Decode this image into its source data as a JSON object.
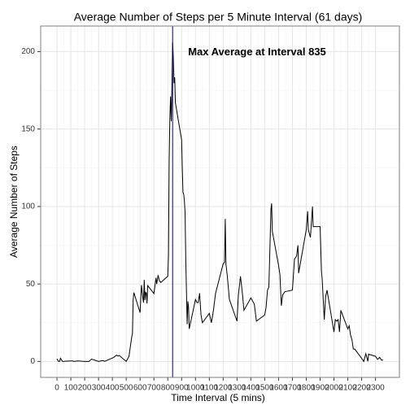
{
  "chart_data": {
    "type": "line",
    "title": "Average Number of Steps per 5 Minute Interval (61 days)",
    "xlabel": "Time Interval (5 mins)",
    "ylabel": "Average Number of Steps",
    "annotation": "Max Average at Interval  835",
    "vline": 835,
    "vline_color": "#00008b",
    "grid": true,
    "x": [
      0,
      10,
      20,
      25,
      40,
      100,
      115,
      120,
      140,
      150,
      200,
      230,
      250,
      300,
      330,
      345,
      410,
      430,
      440,
      450,
      500,
      520,
      540,
      545,
      550,
      555,
      600,
      610,
      620,
      625,
      630,
      635,
      640,
      645,
      650,
      655,
      700,
      710,
      715,
      720,
      730,
      740,
      750,
      800,
      805,
      810,
      815,
      820,
      825,
      830,
      835,
      840,
      845,
      850,
      855,
      900,
      905,
      910,
      915,
      920,
      925,
      930,
      935,
      940,
      945,
      950,
      955,
      1000,
      1010,
      1020,
      1030,
      1040,
      1050,
      1100,
      1115,
      1130,
      1145,
      1200,
      1210,
      1215,
      1220,
      1230,
      1245,
      1300,
      1310,
      1325,
      1340,
      1350,
      1400,
      1425,
      1440,
      1500,
      1510,
      1520,
      1530,
      1545,
      1550,
      1555,
      1600,
      1610,
      1620,
      1630,
      1645,
      1700,
      1715,
      1730,
      1740,
      1745,
      1800,
      1810,
      1815,
      1830,
      1845,
      1850,
      1900,
      1910,
      1915,
      1930,
      1940,
      1950,
      2000,
      2010,
      2020,
      2030,
      2040,
      2050,
      2100,
      2110,
      2120,
      2130,
      2140,
      2150,
      2200,
      2215,
      2230,
      2245,
      2250,
      2300,
      2315,
      2330,
      2345,
      2355
    ],
    "series": [
      {
        "name": "steps",
        "color": "#000000",
        "values": [
          1.7,
          0.1,
          0.1,
          2.1,
          0,
          0.3,
          0.3,
          0,
          0.2,
          0.3,
          0,
          0,
          1.5,
          0,
          0.6,
          0.1,
          2.6,
          4.1,
          3.5,
          3.8,
          0,
          3.3,
          16,
          18,
          39.5,
          44.5,
          31.5,
          49.3,
          41,
          38,
          52.7,
          39.5,
          44.6,
          44.1,
          37.4,
          49,
          43.8,
          50.5,
          54,
          49.9,
          55.7,
          52,
          51,
          55,
          68,
          129,
          157,
          171,
          155,
          177,
          206,
          195.9,
          179.6,
          183.4,
          167,
          143,
          124,
          109,
          108,
          103.7,
          96,
          66,
          45,
          24,
          38.8,
          35,
          21,
          40,
          38,
          38,
          44,
          30,
          25,
          31,
          25,
          33,
          44,
          63,
          64,
          92,
          63,
          55,
          40,
          26,
          43,
          55,
          43,
          33,
          41,
          37,
          26,
          30,
          35,
          46,
          48,
          98,
          102,
          84,
          62,
          56,
          36,
          43,
          45,
          46,
          66,
          68,
          75,
          57,
          85,
          97,
          85,
          80,
          100,
          87,
          87,
          58,
          53,
          27,
          42,
          46,
          19,
          27,
          26,
          27,
          19,
          33,
          21,
          23,
          17,
          14,
          8,
          8,
          2,
          0,
          5,
          0.1,
          4.7,
          3.3,
          1.3,
          2.6,
          0.7,
          1.1
        ]
      }
    ],
    "xlim": [
      -117.75,
      2472.75
    ],
    "xticks": [
      0,
      100,
      200,
      300,
      400,
      500,
      600,
      700,
      800,
      900,
      1000,
      1100,
      1200,
      1300,
      1400,
      1500,
      1600,
      1700,
      1800,
      1900,
      2000,
      2100,
      2200,
      2300
    ],
    "ylim": [
      -10.3,
      216.5
    ],
    "yticks": [
      0,
      50,
      100,
      150,
      200
    ]
  }
}
